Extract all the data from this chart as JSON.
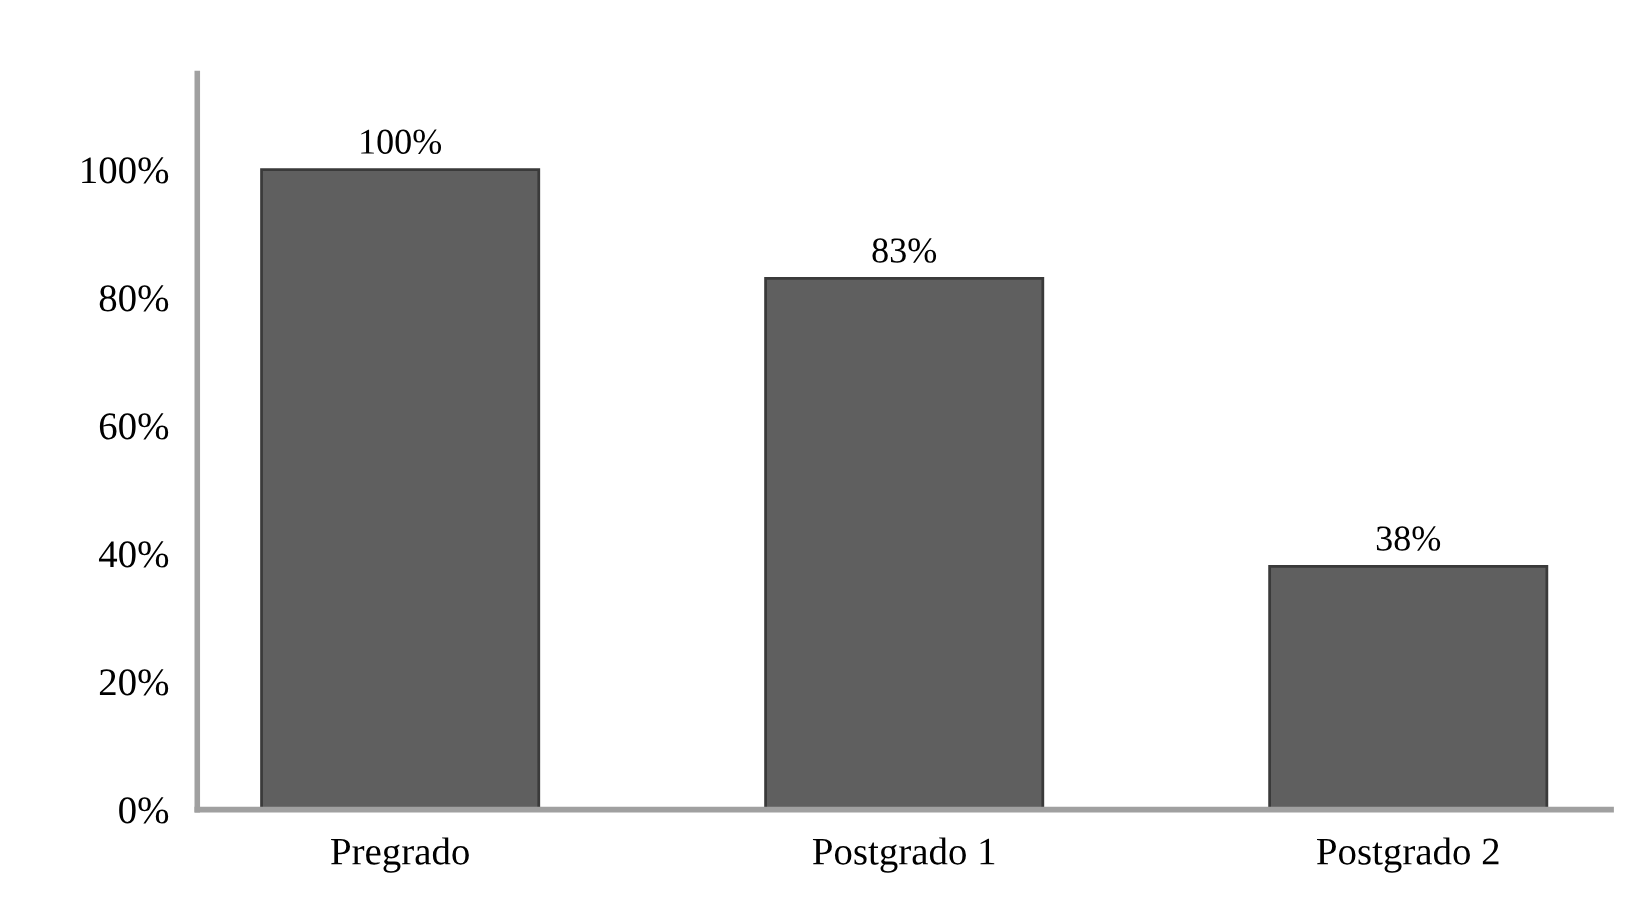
{
  "chart_data": {
    "type": "bar",
    "categories": [
      "Pregrado",
      "Postgrado 1",
      "Postgrado 2"
    ],
    "values": [
      100,
      83,
      38
    ],
    "color": "#5f5f5f",
    "value_labels": [
      "100%",
      "83%",
      "38%"
    ],
    "ylim": [
      0,
      115
    ],
    "yticks": [
      {
        "value": 0,
        "label": "0%"
      },
      {
        "value": 20,
        "label": "20%"
      },
      {
        "value": 40,
        "label": "40%"
      },
      {
        "value": 60,
        "label": "60%"
      },
      {
        "value": 80,
        "label": "80%"
      },
      {
        "value": 100,
        "label": "100%"
      }
    ],
    "grid": false,
    "legend": false
  }
}
